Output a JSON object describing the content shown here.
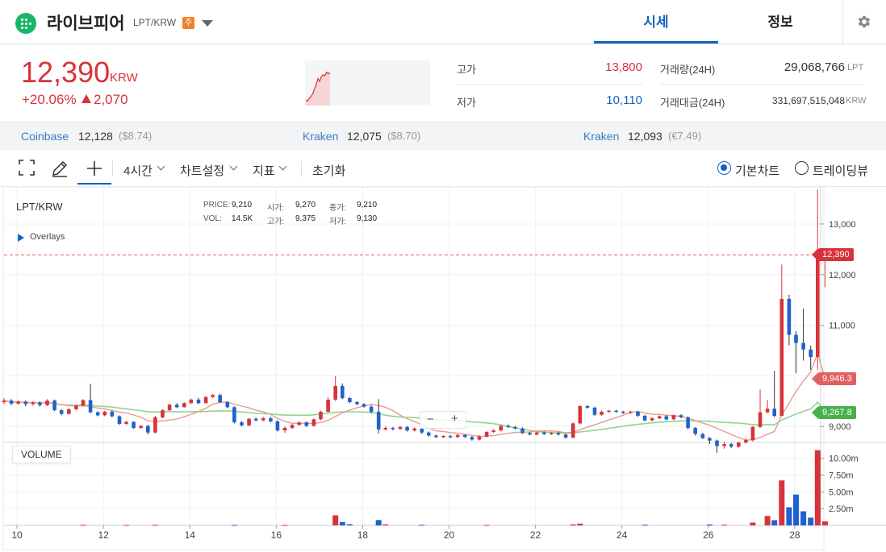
{
  "header": {
    "coin_name": "라이브피어",
    "pair": "LPT/KRW",
    "badge": "주",
    "tabs": [
      {
        "label": "시세",
        "active": true
      },
      {
        "label": "정보",
        "active": false
      }
    ],
    "settings_icon": "gear-icon"
  },
  "ticker": {
    "price": "12,390",
    "unit": "KRW",
    "change_pct": "+20.06%",
    "change_abs": "2,070",
    "sparkline_prices": [
      9400,
      9300,
      9600,
      9800,
      10100,
      10600,
      11100,
      11700,
      11400,
      11900,
      12100,
      12000,
      12390,
      12200,
      12350
    ]
  },
  "stats": {
    "high_label": "고가",
    "high": "13,800",
    "low_label": "저가",
    "low": "10,110",
    "volume_label": "거래량(24H)",
    "volume": "29,068,766",
    "volume_unit": "LPT",
    "amount_label": "거래대금(24H)",
    "amount": "331,697,515,048",
    "amount_unit": "KRW"
  },
  "exchanges": [
    {
      "name": "Coinbase",
      "price": "12,128",
      "sub": "($8.74)"
    },
    {
      "name": "Kraken",
      "price": "12,075",
      "sub": "($8.70)"
    },
    {
      "name": "Kraken",
      "price": "12,093",
      "sub": "(€7.49)"
    }
  ],
  "toolbar": {
    "interval": "4시간",
    "chart_settings": "차트설정",
    "indicators": "지표",
    "reset": "초기화",
    "basic_chart": "기본차트",
    "tradingview": "트레이딩뷰",
    "icons": [
      "fullscreen-icon",
      "pencil-icon",
      "crosshair-icon"
    ]
  },
  "legend": {
    "symbol": "LPT/KRW",
    "overlays": "Overlays",
    "price_label": "PRICE:",
    "price": "9,210",
    "open_label": "시가:",
    "open": "9,270",
    "close_label": "종가:",
    "close": "9,210",
    "vol_label": "VOL:",
    "vol": "14.5K",
    "high_label": "고가:",
    "high": "9,375",
    "low_label": "저가:",
    "low": "9,130"
  },
  "volume_label": "VOLUME",
  "colors": {
    "up": "#d8323b",
    "down": "#1f62cf",
    "ma_short": "#e89b90",
    "ma_long": "#8fd68c",
    "accent": "#1261c4"
  },
  "chart_data": {
    "type": "candlestick",
    "price_axis": {
      "range": [
        8700,
        13700
      ],
      "ticks": [
        9000,
        10000,
        11000,
        12000,
        13000
      ],
      "tick_labels": [
        "9,000",
        "10,000",
        "11,000",
        "12,000",
        "13,000"
      ]
    },
    "volume_axis": {
      "range": [
        0,
        12000000
      ],
      "ticks": [
        2500000,
        5000000,
        7500000,
        10000000
      ],
      "tick_labels": [
        "2.50m",
        "5.00m",
        "7.50m",
        "10.00m"
      ]
    },
    "x_axis": {
      "range": [
        9.7,
        28.6
      ],
      "ticks": [
        10,
        12,
        14,
        16,
        18,
        20,
        22,
        24,
        26,
        28
      ],
      "tick_labels": [
        "10",
        "12",
        "14",
        "16",
        "18",
        "20",
        "22",
        "24",
        "26",
        "28"
      ]
    },
    "markers": {
      "current": "12,390",
      "ma_short": "9,946.3",
      "ma_long": "9,267.8"
    },
    "current_price": 12390,
    "ma_short_last": 9946.3,
    "ma_long_last": 9267.8,
    "candles": [
      [
        9.7,
        9480,
        9510,
        9560,
        9440
      ],
      [
        9.87,
        9510,
        9450,
        9540,
        9420
      ],
      [
        10.03,
        9450,
        9490,
        9520,
        9430
      ],
      [
        10.2,
        9490,
        9440,
        9510,
        9400
      ],
      [
        10.37,
        9440,
        9470,
        9500,
        9410
      ],
      [
        10.53,
        9470,
        9420,
        9500,
        9390
      ],
      [
        10.7,
        9420,
        9510,
        9540,
        9400
      ],
      [
        10.87,
        9510,
        9320,
        9530,
        9300
      ],
      [
        11.03,
        9320,
        9250,
        9340,
        9220
      ],
      [
        11.2,
        9250,
        9340,
        9360,
        9230
      ],
      [
        11.37,
        9340,
        9410,
        9430,
        9320
      ],
      [
        11.53,
        9410,
        9520,
        9540,
        9390
      ],
      [
        11.7,
        9520,
        9280,
        9840,
        9260
      ],
      [
        11.87,
        9280,
        9220,
        9300,
        9200
      ],
      [
        12.03,
        9220,
        9290,
        9310,
        9200
      ],
      [
        12.2,
        9290,
        9200,
        9320,
        9180
      ],
      [
        12.37,
        9200,
        9050,
        9220,
        9030
      ],
      [
        12.53,
        9050,
        9090,
        9110,
        9030
      ],
      [
        12.7,
        9090,
        8970,
        9100,
        8950
      ],
      [
        12.87,
        8970,
        9010,
        9030,
        8950
      ],
      [
        13.03,
        9010,
        8880,
        9030,
        8840
      ],
      [
        13.2,
        8880,
        9180,
        9210,
        8860
      ],
      [
        13.37,
        9180,
        9320,
        9340,
        9160
      ],
      [
        13.53,
        9320,
        9430,
        9450,
        9310
      ],
      [
        13.7,
        9430,
        9380,
        9460,
        9360
      ],
      [
        13.87,
        9380,
        9460,
        9480,
        9370
      ],
      [
        14.03,
        9460,
        9530,
        9550,
        9440
      ],
      [
        14.2,
        9530,
        9460,
        9560,
        9440
      ],
      [
        14.37,
        9460,
        9580,
        9600,
        9450
      ],
      [
        14.53,
        9580,
        9620,
        9640,
        9560
      ],
      [
        14.7,
        9620,
        9480,
        9650,
        9460
      ],
      [
        14.87,
        9480,
        9380,
        9500,
        9360
      ],
      [
        15.03,
        9380,
        9080,
        9400,
        9060
      ],
      [
        15.2,
        9080,
        9020,
        9100,
        9000
      ],
      [
        15.37,
        9020,
        9150,
        9170,
        9000
      ],
      [
        15.53,
        9150,
        9120,
        9180,
        9100
      ],
      [
        15.7,
        9120,
        9160,
        9190,
        9100
      ],
      [
        15.87,
        9160,
        9100,
        9190,
        9080
      ],
      [
        16.03,
        9100,
        8920,
        9120,
        8900
      ],
      [
        16.2,
        8920,
        8970,
        9000,
        8870
      ],
      [
        16.37,
        8970,
        9030,
        9050,
        8950
      ],
      [
        16.53,
        9030,
        9080,
        9100,
        9010
      ],
      [
        16.7,
        9080,
        9010,
        9100,
        8990
      ],
      [
        16.87,
        9010,
        9140,
        9160,
        9000
      ],
      [
        17.03,
        9140,
        9290,
        9310,
        9120
      ],
      [
        17.2,
        9290,
        9530,
        9580,
        9270
      ],
      [
        17.37,
        9530,
        9800,
        10000,
        9500
      ],
      [
        17.53,
        9800,
        9560,
        9850,
        9540
      ],
      [
        17.7,
        9560,
        9480,
        9580,
        9460
      ],
      [
        17.87,
        9480,
        9440,
        9500,
        9420
      ],
      [
        18.03,
        9440,
        9390,
        9460,
        9370
      ],
      [
        18.2,
        9390,
        9290,
        9420,
        9260
      ],
      [
        18.37,
        9290,
        8940,
        9540,
        8860
      ],
      [
        18.53,
        8940,
        8970,
        9000,
        8920
      ],
      [
        18.7,
        8970,
        8950,
        8990,
        8920
      ],
      [
        18.87,
        8950,
        8990,
        9010,
        8930
      ],
      [
        19.03,
        8990,
        8920,
        9010,
        8900
      ],
      [
        19.2,
        8920,
        8960,
        8980,
        8900
      ],
      [
        19.37,
        8960,
        8880,
        8980,
        8850
      ],
      [
        19.53,
        8880,
        8820,
        8900,
        8800
      ],
      [
        19.7,
        8820,
        8790,
        8840,
        8770
      ],
      [
        19.87,
        8790,
        8810,
        8830,
        8770
      ],
      [
        20.03,
        8810,
        8790,
        8830,
        8770
      ],
      [
        20.2,
        8790,
        8830,
        8850,
        8770
      ],
      [
        20.37,
        8830,
        8790,
        8840,
        8770
      ],
      [
        20.53,
        8790,
        8740,
        8810,
        8720
      ],
      [
        20.7,
        8740,
        8800,
        8830,
        8720
      ],
      [
        20.87,
        8800,
        8890,
        8910,
        8780
      ],
      [
        21.03,
        8890,
        8920,
        8950,
        8870
      ],
      [
        21.2,
        8920,
        9010,
        9030,
        8900
      ],
      [
        21.37,
        9010,
        8990,
        9040,
        8970
      ],
      [
        21.53,
        8990,
        8960,
        9010,
        8940
      ],
      [
        21.7,
        8960,
        8870,
        8980,
        8850
      ],
      [
        21.87,
        8870,
        8840,
        8890,
        8820
      ],
      [
        22.03,
        8840,
        8880,
        8900,
        8820
      ],
      [
        22.2,
        8880,
        8850,
        8900,
        8830
      ],
      [
        22.37,
        8850,
        8870,
        8890,
        8830
      ],
      [
        22.53,
        8870,
        8840,
        8890,
        8820
      ],
      [
        22.7,
        8840,
        8780,
        8860,
        8760
      ],
      [
        22.87,
        8780,
        9060,
        9080,
        8760
      ],
      [
        23.03,
        9060,
        9400,
        9420,
        9040
      ],
      [
        23.2,
        9400,
        9370,
        9420,
        9350
      ],
      [
        23.37,
        9370,
        9230,
        9390,
        9210
      ],
      [
        23.53,
        9230,
        9290,
        9310,
        9210
      ],
      [
        23.7,
        9290,
        9310,
        9330,
        9270
      ],
      [
        23.87,
        9310,
        9290,
        9330,
        9270
      ],
      [
        24.03,
        9290,
        9270,
        9310,
        9250
      ],
      [
        24.2,
        9270,
        9290,
        9310,
        9250
      ],
      [
        24.37,
        9290,
        9210,
        9310,
        9190
      ],
      [
        24.53,
        9210,
        9120,
        9230,
        9100
      ],
      [
        24.7,
        9120,
        9160,
        9180,
        9100
      ],
      [
        24.87,
        9160,
        9200,
        9220,
        9140
      ],
      [
        25.03,
        9200,
        9140,
        9220,
        9120
      ],
      [
        25.2,
        9140,
        9220,
        9240,
        9120
      ],
      [
        25.37,
        9220,
        9180,
        9240,
        9160
      ],
      [
        25.53,
        9180,
        8970,
        9200,
        8940
      ],
      [
        25.7,
        8970,
        8850,
        8990,
        8820
      ],
      [
        25.87,
        8850,
        8770,
        8870,
        8750
      ],
      [
        26.03,
        8770,
        8720,
        8790,
        8650
      ],
      [
        26.2,
        8720,
        8610,
        8740,
        8480
      ],
      [
        26.37,
        8610,
        8650,
        8700,
        8560
      ],
      [
        26.53,
        8650,
        8600,
        8670,
        8570
      ],
      [
        26.7,
        8600,
        8680,
        8700,
        8580
      ],
      [
        26.87,
        8680,
        8730,
        8760,
        8660
      ],
      [
        27.03,
        8730,
        8990,
        9010,
        8700
      ],
      [
        27.2,
        8990,
        9280,
        9730,
        8970
      ],
      [
        27.37,
        9280,
        9350,
        9520,
        9260
      ],
      [
        27.53,
        9350,
        9210,
        10100,
        9180
      ],
      [
        27.7,
        9210,
        11520,
        12200,
        9200
      ],
      [
        27.87,
        11520,
        10810,
        11600,
        10600
      ],
      [
        28.03,
        10810,
        10650,
        10880,
        10050
      ],
      [
        28.2,
        10650,
        10520,
        11330,
        10300
      ],
      [
        28.37,
        10520,
        10370,
        10600,
        10120
      ],
      [
        28.53,
        10370,
        12340,
        13680,
        10120
      ],
      [
        28.7,
        12340,
        12390,
        12450,
        11750
      ]
    ],
    "volumes": [
      [
        11.53,
        90000
      ],
      [
        12.53,
        60000
      ],
      [
        13.2,
        80000
      ],
      [
        15.03,
        70000
      ],
      [
        16.2,
        60000
      ],
      [
        17.37,
        1500000
      ],
      [
        17.53,
        500000
      ],
      [
        17.7,
        180000
      ],
      [
        18.37,
        800000
      ],
      [
        18.53,
        160000
      ],
      [
        19.37,
        90000
      ],
      [
        20.87,
        70000
      ],
      [
        22.87,
        160000
      ],
      [
        23.03,
        260000
      ],
      [
        24.53,
        110000
      ],
      [
        26.03,
        150000
      ],
      [
        26.37,
        120000
      ],
      [
        27.03,
        420000
      ],
      [
        27.37,
        1400000
      ],
      [
        27.53,
        780000
      ],
      [
        27.7,
        6700000
      ],
      [
        27.87,
        2700000
      ],
      [
        28.03,
        4600000
      ],
      [
        28.2,
        2100000
      ],
      [
        28.37,
        1150000
      ],
      [
        28.53,
        11200000
      ],
      [
        28.7,
        600000
      ]
    ]
  }
}
